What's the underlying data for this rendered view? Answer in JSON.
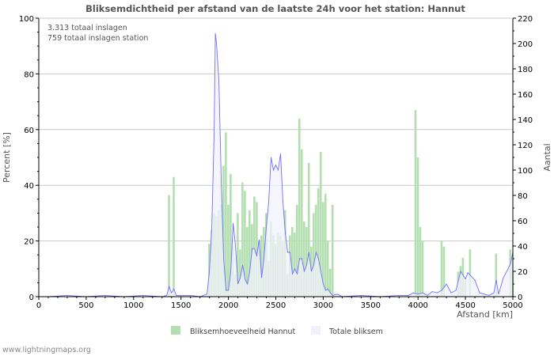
{
  "chart_data": {
    "type": "bar",
    "title": "Bliksemdichtheid per afstand van de laatste 24h voor het station: Hannut",
    "annotations": [
      "3.313 totaal inslagen",
      "759 totaal inslagen station"
    ],
    "xlabel": "Afstand   [km]",
    "ylabel": "Percent   [%]",
    "y2label": "Aantal",
    "xlim": [
      0,
      5000
    ],
    "ylim": [
      0,
      100
    ],
    "y2lim": [
      0,
      220
    ],
    "xticks": [
      0,
      500,
      1000,
      1500,
      2000,
      2500,
      3000,
      3500,
      4000,
      4500,
      5000
    ],
    "yticks": [
      0,
      20,
      40,
      60,
      80,
      100
    ],
    "y2ticks": [
      0,
      20,
      40,
      60,
      80,
      100,
      120,
      140,
      160,
      180,
      200,
      220
    ],
    "grid": true,
    "legend_position": "bottom",
    "series": [
      {
        "name": "Bliksemhoeveelheid Hannut",
        "axis": "left",
        "color": "#b3dfb0",
        "points": [
          [
            1375,
            36.5
          ],
          [
            1425,
            43
          ],
          [
            1800,
            19
          ],
          [
            1825,
            24
          ],
          [
            1850,
            30
          ],
          [
            1875,
            29
          ],
          [
            1900,
            31
          ],
          [
            1925,
            33
          ],
          [
            1950,
            47
          ],
          [
            1975,
            59
          ],
          [
            2000,
            33
          ],
          [
            2025,
            44
          ],
          [
            2050,
            18
          ],
          [
            2075,
            8
          ],
          [
            2100,
            30
          ],
          [
            2125,
            17
          ],
          [
            2150,
            41
          ],
          [
            2175,
            38
          ],
          [
            2200,
            25
          ],
          [
            2225,
            31
          ],
          [
            2250,
            26
          ],
          [
            2275,
            36
          ],
          [
            2300,
            34
          ],
          [
            2325,
            20
          ],
          [
            2350,
            22
          ],
          [
            2375,
            25
          ],
          [
            2400,
            30
          ],
          [
            2425,
            13
          ],
          [
            2450,
            27
          ],
          [
            2475,
            22
          ],
          [
            2500,
            19
          ],
          [
            2525,
            23
          ],
          [
            2550,
            22
          ],
          [
            2575,
            20
          ],
          [
            2600,
            31
          ],
          [
            2625,
            8
          ],
          [
            2650,
            22
          ],
          [
            2675,
            25
          ],
          [
            2700,
            23
          ],
          [
            2725,
            33
          ],
          [
            2750,
            64
          ],
          [
            2775,
            53
          ],
          [
            2800,
            27
          ],
          [
            2825,
            25
          ],
          [
            2850,
            48
          ],
          [
            2875,
            18
          ],
          [
            2900,
            30
          ],
          [
            2925,
            33
          ],
          [
            2950,
            39
          ],
          [
            2975,
            52
          ],
          [
            3000,
            34
          ],
          [
            3025,
            37
          ],
          [
            3050,
            20
          ],
          [
            3075,
            10
          ],
          [
            3100,
            33
          ],
          [
            3975,
            67
          ],
          [
            4000,
            50
          ],
          [
            4025,
            25
          ],
          [
            4050,
            20
          ],
          [
            4250,
            20
          ],
          [
            4275,
            18
          ],
          [
            4425,
            9
          ],
          [
            4450,
            11
          ],
          [
            4475,
            14
          ],
          [
            4500,
            6
          ],
          [
            4550,
            17
          ],
          [
            4825,
            15.5
          ],
          [
            4975,
            17
          ],
          [
            5000,
            9
          ]
        ]
      },
      {
        "name": "Totale bliksem",
        "axis": "right",
        "color": "#6f6fff",
        "fill": "#f1f1fc",
        "points": [
          [
            0,
            0
          ],
          [
            100,
            0
          ],
          [
            300,
            1
          ],
          [
            500,
            0
          ],
          [
            700,
            1
          ],
          [
            900,
            0
          ],
          [
            1100,
            1
          ],
          [
            1300,
            0
          ],
          [
            1350,
            1
          ],
          [
            1375,
            8
          ],
          [
            1400,
            3
          ],
          [
            1425,
            6
          ],
          [
            1450,
            1
          ],
          [
            1500,
            1
          ],
          [
            1600,
            1
          ],
          [
            1700,
            0
          ],
          [
            1775,
            2
          ],
          [
            1800,
            20
          ],
          [
            1825,
            55
          ],
          [
            1850,
            130
          ],
          [
            1862,
            208
          ],
          [
            1875,
            200
          ],
          [
            1900,
            170
          ],
          [
            1925,
            90
          ],
          [
            1950,
            30
          ],
          [
            1975,
            5
          ],
          [
            2000,
            5
          ],
          [
            2025,
            20
          ],
          [
            2050,
            58
          ],
          [
            2075,
            40
          ],
          [
            2100,
            10
          ],
          [
            2125,
            15
          ],
          [
            2150,
            25
          ],
          [
            2175,
            14
          ],
          [
            2200,
            10
          ],
          [
            2225,
            20
          ],
          [
            2250,
            38
          ],
          [
            2275,
            38
          ],
          [
            2300,
            32
          ],
          [
            2325,
            45
          ],
          [
            2350,
            15
          ],
          [
            2375,
            30
          ],
          [
            2400,
            55
          ],
          [
            2425,
            75
          ],
          [
            2450,
            110
          ],
          [
            2475,
            100
          ],
          [
            2500,
            104
          ],
          [
            2525,
            100
          ],
          [
            2550,
            113
          ],
          [
            2575,
            75
          ],
          [
            2600,
            50
          ],
          [
            2625,
            35
          ],
          [
            2650,
            35
          ],
          [
            2675,
            18
          ],
          [
            2700,
            22
          ],
          [
            2725,
            18
          ],
          [
            2750,
            30
          ],
          [
            2775,
            30
          ],
          [
            2800,
            20
          ],
          [
            2825,
            25
          ],
          [
            2850,
            35
          ],
          [
            2875,
            20
          ],
          [
            2900,
            25
          ],
          [
            2925,
            35
          ],
          [
            2950,
            30
          ],
          [
            2975,
            20
          ],
          [
            3000,
            10
          ],
          [
            3025,
            5
          ],
          [
            3050,
            6
          ],
          [
            3075,
            3
          ],
          [
            3100,
            1
          ],
          [
            3150,
            2
          ],
          [
            3200,
            0
          ],
          [
            3400,
            1
          ],
          [
            3600,
            0
          ],
          [
            3800,
            1
          ],
          [
            3900,
            1
          ],
          [
            3950,
            3
          ],
          [
            4000,
            2
          ],
          [
            4050,
            3
          ],
          [
            4100,
            1
          ],
          [
            4150,
            4
          ],
          [
            4200,
            3
          ],
          [
            4250,
            5
          ],
          [
            4300,
            10
          ],
          [
            4350,
            3
          ],
          [
            4400,
            5
          ],
          [
            4450,
            20
          ],
          [
            4500,
            14
          ],
          [
            4525,
            19
          ],
          [
            4550,
            17
          ],
          [
            4600,
            13
          ],
          [
            4650,
            3
          ],
          [
            4700,
            2
          ],
          [
            4750,
            1
          ],
          [
            4800,
            3
          ],
          [
            4825,
            13
          ],
          [
            4850,
            2
          ],
          [
            4900,
            15
          ],
          [
            4950,
            22
          ],
          [
            4975,
            26
          ],
          [
            5000,
            35
          ]
        ]
      }
    ]
  },
  "footer": "www.lightningmaps.org"
}
